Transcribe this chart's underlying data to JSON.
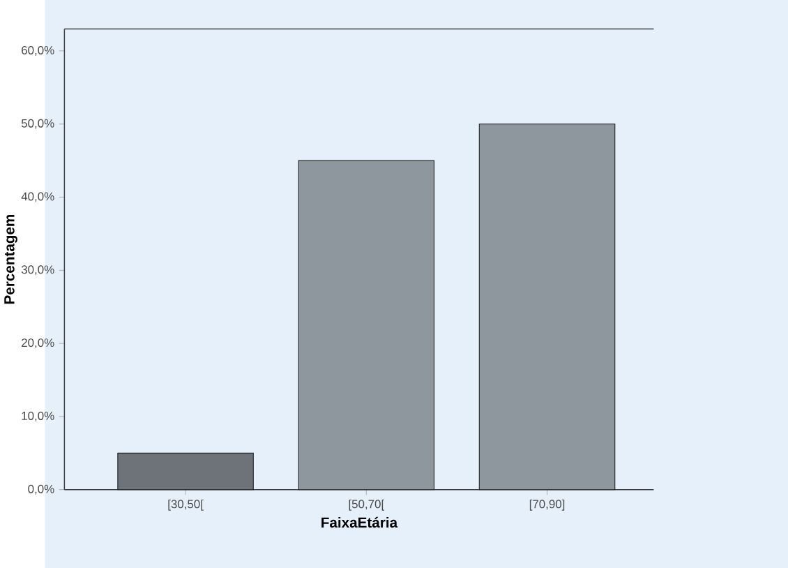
{
  "chart_data": {
    "type": "bar",
    "xlabel": "FaixaEtária",
    "ylabel": "Percentagem",
    "categories": [
      "[30,50[",
      "[50,70[",
      "[70,90]"
    ],
    "values": [
      5.0,
      45.0,
      50.0
    ],
    "colors": [
      "#6e7379",
      "#8e969e",
      "#8e969e"
    ],
    "ylim": [
      0,
      63
    ],
    "yticks": [
      {
        "value": 0,
        "label": "0,0%"
      },
      {
        "value": 10,
        "label": "10,0%"
      },
      {
        "value": 20,
        "label": "20,0%"
      },
      {
        "value": 30,
        "label": "30,0%"
      },
      {
        "value": 40,
        "label": "40,0%"
      },
      {
        "value": 50,
        "label": "50,0%"
      },
      {
        "value": 60,
        "label": "60,0%"
      }
    ]
  }
}
